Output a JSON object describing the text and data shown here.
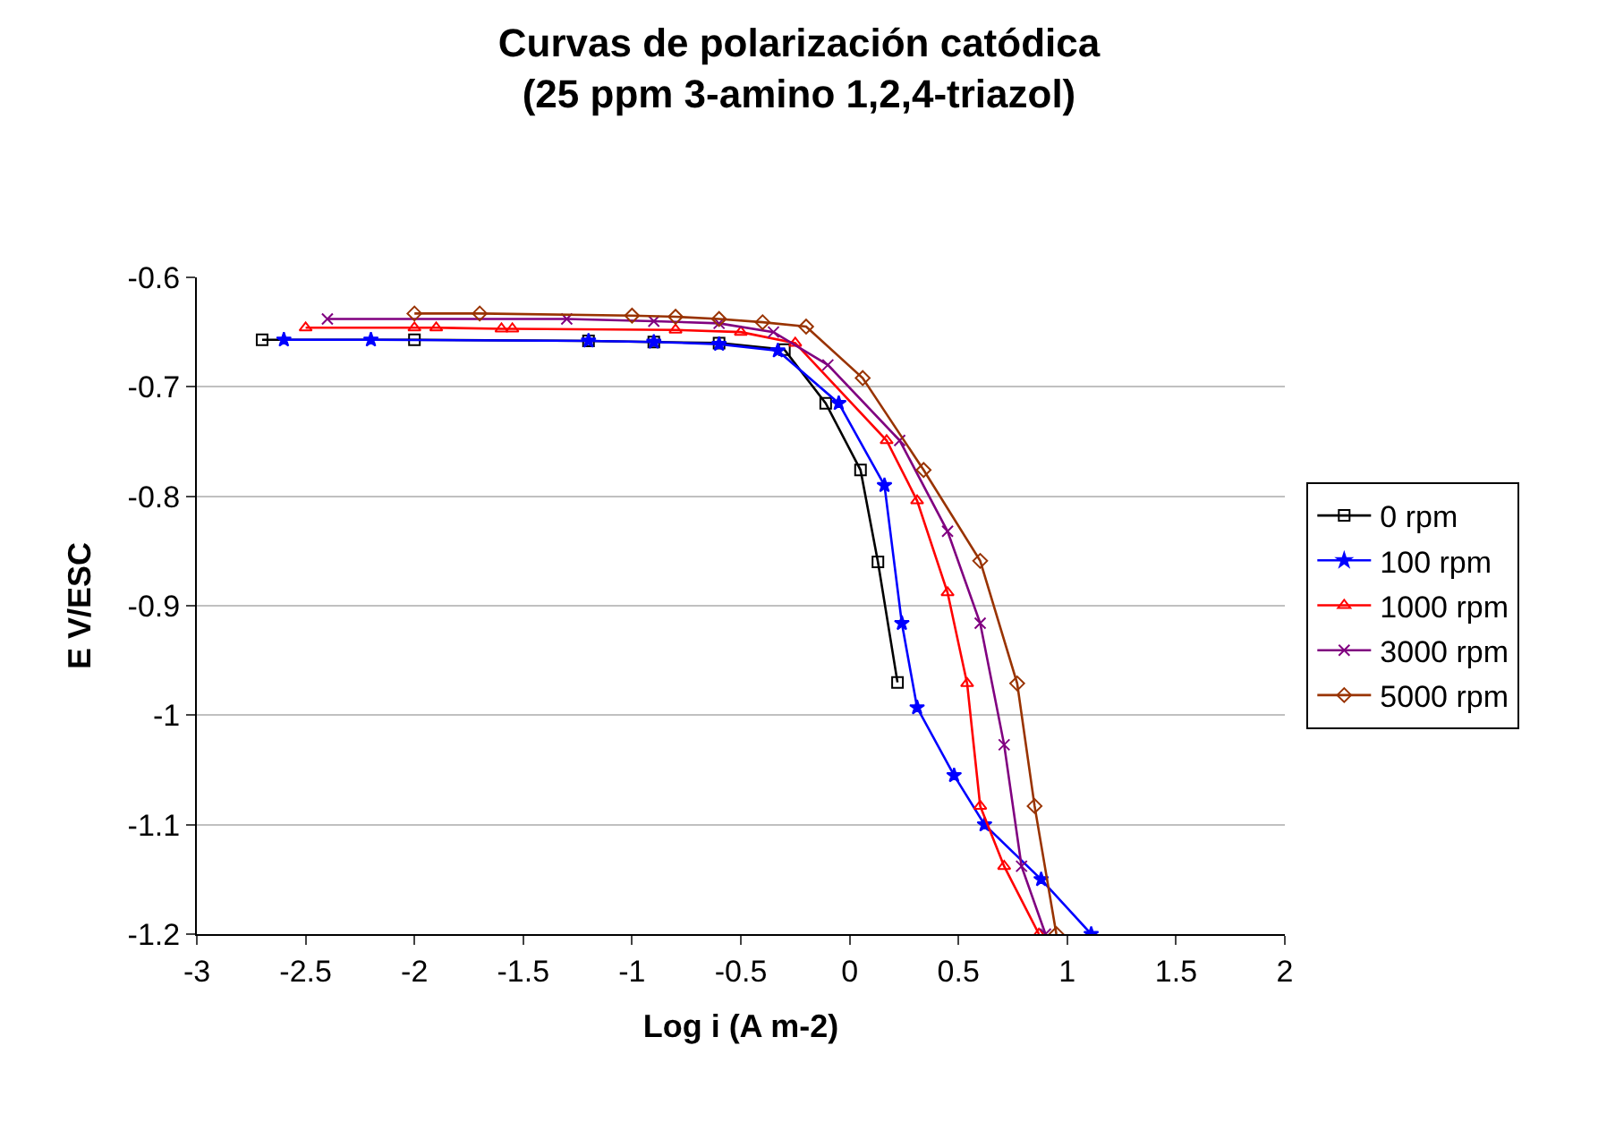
{
  "chart_data": {
    "type": "line",
    "title": "Curvas de polarización catódica\n(25 ppm 3-amino 1,2,4-triazol)",
    "xlabel": "Log i (A m-2)",
    "ylabel": "E V/ESC",
    "xlim": [
      -3,
      2
    ],
    "xticks": [
      -3,
      -2.5,
      -2,
      -1.5,
      -1,
      -0.5,
      0,
      0.5,
      1,
      1.5,
      2
    ],
    "ylim": [
      -1.2,
      -0.6
    ],
    "yticks": [
      -1.2,
      -1.1,
      -1,
      -0.9,
      -0.8,
      -0.7,
      -0.6
    ],
    "grid": "y",
    "legend": "right",
    "series": [
      {
        "name": "0 rpm",
        "color": "#000000",
        "marker": "square",
        "x": [
          -2.7,
          -2.0,
          -1.2,
          -0.9,
          -0.6,
          -0.3,
          -0.11,
          0.05,
          0.13,
          0.22
        ],
        "values": [
          -0.657,
          -0.657,
          -0.658,
          -0.659,
          -0.66,
          -0.666,
          -0.715,
          -0.776,
          -0.86,
          -0.97
        ]
      },
      {
        "name": "100 rpm",
        "color": "#0000ff",
        "marker": "star",
        "x": [
          -2.6,
          -2.2,
          -1.2,
          -0.9,
          -0.6,
          -0.33,
          -0.05,
          0.16,
          0.24,
          0.31,
          0.48,
          0.62,
          0.88,
          1.11
        ],
        "values": [
          -0.657,
          -0.657,
          -0.658,
          -0.659,
          -0.661,
          -0.667,
          -0.715,
          -0.79,
          -0.916,
          -0.993,
          -1.055,
          -1.1,
          -1.15,
          -1.2
        ]
      },
      {
        "name": "1000 rpm",
        "color": "#ff0000",
        "marker": "triangle",
        "x": [
          -2.5,
          -2.0,
          -1.9,
          -1.6,
          -1.55,
          -0.8,
          -0.5,
          -0.25,
          0.17,
          0.31,
          0.45,
          0.54,
          0.6,
          0.71,
          0.87
        ],
        "values": [
          -0.646,
          -0.646,
          -0.646,
          -0.647,
          -0.647,
          -0.648,
          -0.65,
          -0.66,
          -0.749,
          -0.804,
          -0.888,
          -0.971,
          -1.083,
          -1.138,
          -1.2
        ]
      },
      {
        "name": "3000 rpm",
        "color": "#800080",
        "marker": "cross",
        "x": [
          -2.4,
          -1.3,
          -0.9,
          -0.6,
          -0.35,
          -0.1,
          0.23,
          0.45,
          0.6,
          0.71,
          0.79,
          0.9
        ],
        "values": [
          -0.638,
          -0.638,
          -0.64,
          -0.642,
          -0.65,
          -0.68,
          -0.749,
          -0.832,
          -0.916,
          -1.027,
          -1.138,
          -1.2
        ]
      },
      {
        "name": "5000 rpm",
        "color": "#993300",
        "marker": "diamond",
        "x": [
          -2.0,
          -1.7,
          -1.0,
          -0.8,
          -0.6,
          -0.4,
          -0.2,
          0.06,
          0.34,
          0.6,
          0.77,
          0.85,
          0.95
        ],
        "values": [
          -0.633,
          -0.633,
          -0.635,
          -0.636,
          -0.638,
          -0.641,
          -0.645,
          -0.692,
          -0.776,
          -0.859,
          -0.971,
          -1.083,
          -1.2
        ]
      }
    ]
  }
}
